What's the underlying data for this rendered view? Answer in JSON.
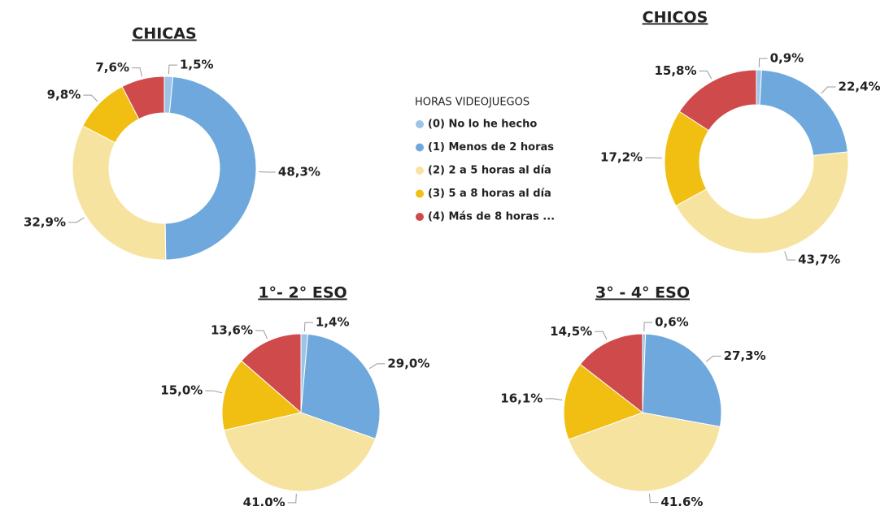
{
  "legend": {
    "title": "HORAS VIDEOJUEGOS",
    "labels": [
      "(0) No lo he hecho",
      "(1) Menos de 2 horas",
      "(2) 2 a 5 horas al día",
      "(3) 5 a 8 horas al día",
      "(4) Más de 8 horas ..."
    ],
    "colors": [
      "#9dc3e6",
      "#6fa8dc",
      "#f7e3a0",
      "#f1be12",
      "#cf4a4a"
    ]
  },
  "chart_data": [
    {
      "type": "donut",
      "title": "CHICAS",
      "values": [
        1.5,
        48.3,
        32.9,
        9.8,
        7.6
      ],
      "value_labels": [
        "1,5%",
        "48,3%",
        "32,9%",
        "9,8%",
        "7,6%"
      ]
    },
    {
      "type": "donut",
      "title": "CHICOS",
      "values": [
        0.9,
        22.4,
        43.7,
        17.2,
        15.8
      ],
      "value_labels": [
        "0,9%",
        "22,4%",
        "43,7%",
        "17,2%",
        "15,8%"
      ]
    },
    {
      "type": "pie",
      "title": "1°- 2° ESO",
      "values": [
        1.4,
        29.0,
        41.0,
        15.0,
        13.6
      ],
      "value_labels": [
        "1,4%",
        "29,0%",
        "41,0%",
        "15,0%",
        "13,6%"
      ]
    },
    {
      "type": "pie",
      "title": "3° - 4° ESO",
      "values": [
        0.6,
        27.3,
        41.6,
        16.1,
        14.5
      ],
      "value_labels": [
        "0,6%",
        "27,3%",
        "41,6%",
        "16,1%",
        "14,5%"
      ]
    }
  ]
}
